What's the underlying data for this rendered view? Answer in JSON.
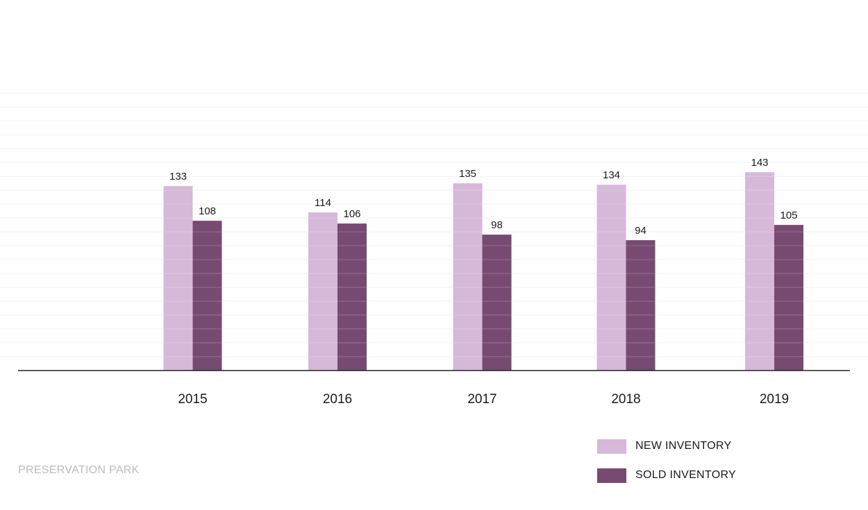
{
  "colors": {
    "new": "#d6b8d8",
    "sold": "#774a72",
    "axis": "#222222",
    "grid": "#f1f1f1"
  },
  "chart_data": {
    "type": "bar",
    "categories": [
      "2015",
      "2016",
      "2017",
      "2018",
      "2019"
    ],
    "series": [
      {
        "name": "NEW INVENTORY",
        "values": [
          133,
          114,
          135,
          134,
          143
        ]
      },
      {
        "name": "SOLD INVENTORY",
        "values": [
          108,
          106,
          98,
          94,
          105
        ]
      }
    ],
    "ylim": [
      0,
      200
    ],
    "grid": true,
    "legend_position": "bottom-right",
    "data_labels": true
  },
  "legend": {
    "new_label": "NEW INVENTORY",
    "sold_label": "SOLD INVENTORY"
  },
  "footer": {
    "source_label": "PRESERVATION PARK"
  }
}
